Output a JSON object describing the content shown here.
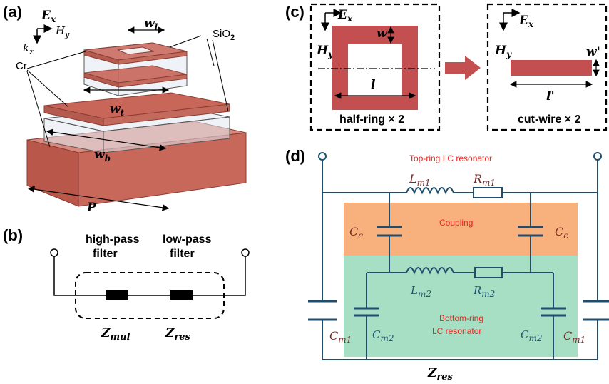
{
  "panels": {
    "a": {
      "label": "(a)",
      "Ex": "E",
      "Ex_sub": "x",
      "Hy": "H",
      "Hy_sub": "y",
      "kz": "k",
      "kz_sub": "z",
      "wl": "w",
      "wl_sub": "l",
      "wt": "w",
      "wt_sub": "t",
      "wb": "w",
      "wb_sub": "b",
      "P": "P",
      "sio2": "SiO",
      "sio2_sub": "2",
      "cr": "Cr"
    },
    "b": {
      "label": "(b)",
      "high_pass_1": "high-pass",
      "high_pass_2": "filter",
      "low_pass_1": "low-pass",
      "low_pass_2": "filter",
      "z_mul": "Z",
      "z_mul_sub": "mul",
      "z_res": "Z",
      "z_res_sub": "res"
    },
    "c": {
      "label": "(c)",
      "Ex": "E",
      "Ex_sub": "x",
      "Hy": "H",
      "Hy_sub": "y",
      "w": "w",
      "l": "l",
      "half_ring": "half-ring × 2",
      "Ex2": "E",
      "Ex2_sub": "x",
      "Hy2": "H",
      "Hy2_sub": "y",
      "w_prime": "w'",
      "l_prime": "l'",
      "cut_wire": "cut-wire × 2"
    },
    "d": {
      "label": "(d)",
      "top_title": "Top-ring LC resonator",
      "coupling": "Coupling",
      "bottom_title_1": "Bottom-ring",
      "bottom_title_2": "LC resonator",
      "Lm1": "L",
      "Lm1_sub": "m1",
      "Rm1": "R",
      "Rm1_sub": "m1",
      "Cc_left": "C",
      "Cc_left_sub": "c",
      "Cc_right": "C",
      "Cc_right_sub": "c",
      "Lm2": "L",
      "Lm2_sub": "m2",
      "Rm2": "R",
      "Rm2_sub": "m2",
      "Cm1_left": "C",
      "Cm1_left_sub": "m1",
      "Cm2_left": "C",
      "Cm2_left_sub": "m2",
      "Cm2_right": "C",
      "Cm2_right_sub": "m2",
      "Cm1_right": "C",
      "Cm1_right_sub": "m1",
      "z_res": "Z",
      "z_res_sub": "res"
    }
  },
  "colors": {
    "copper": "#c9665a",
    "coupling_bg": "#f8b07c",
    "bottom_bg": "#a7dfc4",
    "red_text": "#e8251f",
    "teal_text": "#1f5878"
  }
}
